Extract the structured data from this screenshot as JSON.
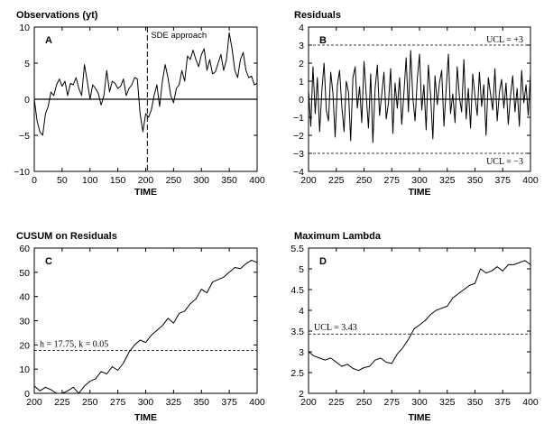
{
  "chart_data": [
    {
      "type": "line",
      "title": "Observations (yt)",
      "panel_label": "A",
      "xlabel": "TIME",
      "ylabel": "",
      "xlim": [
        0,
        400
      ],
      "ylim": [
        -10,
        10
      ],
      "xticks": [
        0,
        50,
        100,
        150,
        200,
        250,
        300,
        350,
        400
      ],
      "yticks": [
        -10,
        -5,
        0,
        5,
        10
      ],
      "reference_lines": [
        {
          "axis": "y",
          "value": 0,
          "style": "solid"
        }
      ],
      "vline": {
        "value": 203,
        "style": "dashed",
        "label": "SDE approach"
      },
      "series": [
        {
          "x": [
            0,
            5,
            10,
            15,
            20,
            25,
            30,
            35,
            40,
            45,
            50,
            55,
            60,
            65,
            70,
            75,
            80,
            85,
            90,
            95,
            100,
            105,
            110,
            115,
            120,
            125,
            130,
            135,
            140,
            145,
            150,
            155,
            160,
            165,
            170,
            175,
            180,
            185,
            190,
            195,
            200,
            205,
            210,
            215,
            220,
            225,
            230,
            235,
            240,
            245,
            250,
            255,
            260,
            265,
            270,
            275,
            280,
            285,
            290,
            295,
            300,
            305,
            310,
            315,
            320,
            325,
            330,
            335,
            340,
            345,
            350,
            355,
            360,
            365,
            370,
            375,
            380,
            385,
            390,
            395,
            400
          ],
          "y": [
            0,
            -3,
            -4.5,
            -5,
            -2,
            -1,
            1,
            0.5,
            2,
            2.8,
            1.8,
            2.5,
            0.5,
            2.2,
            2,
            3,
            1.5,
            0.5,
            4.8,
            2.5,
            0,
            2,
            1.5,
            0.8,
            -0.8,
            0.5,
            4,
            1,
            2.5,
            2.2,
            1.5,
            1.8,
            2.8,
            0.5,
            1.5,
            2,
            3,
            2.8,
            -2,
            -4.5,
            -2,
            -2.5,
            -1.5,
            0.5,
            2,
            -1,
            2.5,
            4.8,
            3,
            0.5,
            -0.5,
            1.5,
            2,
            4,
            2.5,
            6,
            5.5,
            6.8,
            5.5,
            4.5,
            6.2,
            7,
            4,
            5.5,
            3.5,
            3.8,
            5,
            6.2,
            4,
            5.5,
            9.2,
            7,
            4,
            3,
            5.5,
            6.5,
            4,
            3,
            3.2,
            2,
            2.2
          ]
        }
      ]
    },
    {
      "type": "line",
      "title": "Residuals",
      "panel_label": "B",
      "xlabel": "TIME",
      "ylabel": "",
      "xlim": [
        200,
        400
      ],
      "ylim": [
        -4,
        4
      ],
      "xticks": [
        200,
        225,
        250,
        275,
        300,
        325,
        350,
        375,
        400
      ],
      "yticks": [
        -4,
        -3,
        -2,
        -1,
        0,
        1,
        2,
        3,
        4
      ],
      "reference_lines": [
        {
          "axis": "y",
          "value": 0,
          "style": "solid"
        },
        {
          "axis": "y",
          "value": 3,
          "style": "dashed",
          "label": "UCL = +3"
        },
        {
          "axis": "y",
          "value": -3,
          "style": "dashed",
          "label": "UCL = −3"
        }
      ],
      "series": [
        {
          "x": [
            200,
            202,
            204,
            206,
            208,
            210,
            212,
            214,
            216,
            218,
            220,
            222,
            224,
            226,
            228,
            230,
            232,
            234,
            236,
            238,
            240,
            242,
            244,
            246,
            248,
            250,
            252,
            254,
            256,
            258,
            260,
            262,
            264,
            266,
            268,
            270,
            272,
            274,
            276,
            278,
            280,
            282,
            284,
            286,
            288,
            290,
            292,
            294,
            296,
            298,
            300,
            302,
            304,
            306,
            308,
            310,
            312,
            314,
            316,
            318,
            320,
            322,
            324,
            326,
            328,
            330,
            332,
            334,
            336,
            338,
            340,
            342,
            344,
            346,
            348,
            350,
            352,
            354,
            356,
            358,
            360,
            362,
            364,
            366,
            368,
            370,
            372,
            374,
            376,
            378,
            380,
            382,
            384,
            386,
            388,
            390,
            392,
            394,
            396,
            398,
            400
          ],
          "y": [
            0.5,
            -1.5,
            1.8,
            -0.8,
            1.2,
            -1.8,
            0.5,
            2,
            -0.6,
            -1.2,
            1.5,
            0.3,
            -2.1,
            0.8,
            1.6,
            -0.4,
            -1.8,
            1,
            0.4,
            -2.3,
            1.2,
            1.8,
            -0.5,
            0.7,
            -1.3,
            2.1,
            0.2,
            -1.6,
            1.4,
            -2.4,
            0.6,
            1.9,
            -0.9,
            0.3,
            1.5,
            -1.1,
            -0.2,
            1.7,
            -1.9,
            0.9,
            -0.5,
            1.2,
            -1.4,
            0.4,
            2.3,
            -0.7,
            2.7,
            0.1,
            -1.2,
            1.1,
            2.5,
            -0.6,
            0.8,
            -1.7,
            1.9,
            0.2,
            -2.2,
            1.3,
            -0.3,
            0.9,
            1.6,
            -1.5,
            0.5,
            2.5,
            -0.8,
            0.3,
            -1.3,
            1.8,
            0.1,
            -0.7,
            2.2,
            -1.1,
            0.6,
            -1.6,
            1.4,
            0.2,
            -0.9,
            1.5,
            -0.4,
            0.8,
            -2,
            1.2,
            0.3,
            -0.6,
            1.7,
            -1.2,
            0.4,
            1.1,
            -0.5,
            0.9,
            -1.4,
            0.2,
            1.3,
            -0.7,
            0.6,
            -1.5,
            1.6,
            -0.2,
            0.8,
            -0.9,
            1.4
          ]
        }
      ]
    },
    {
      "type": "line",
      "title": "CUSUM on Residuals",
      "panel_label": "C",
      "xlabel": "TIME",
      "ylabel": "",
      "xlim": [
        200,
        400
      ],
      "ylim": [
        0,
        60
      ],
      "xticks": [
        200,
        225,
        250,
        275,
        300,
        325,
        350,
        375,
        400
      ],
      "yticks": [
        0,
        10,
        20,
        30,
        40,
        50,
        60
      ],
      "reference_lines": [
        {
          "axis": "y",
          "value": 17.75,
          "style": "dashed",
          "label": "h = 17.75, k = 0.05"
        }
      ],
      "series": [
        {
          "x": [
            200,
            205,
            210,
            215,
            220,
            225,
            230,
            235,
            240,
            245,
            250,
            255,
            260,
            265,
            270,
            275,
            280,
            285,
            290,
            295,
            300,
            305,
            310,
            315,
            320,
            325,
            330,
            335,
            340,
            345,
            350,
            355,
            360,
            365,
            370,
            375,
            380,
            385,
            390,
            395,
            400
          ],
          "y": [
            3,
            1,
            2.5,
            1.5,
            0,
            0,
            1,
            2.5,
            0,
            3,
            5,
            6,
            9,
            8,
            11,
            9.5,
            12.5,
            17,
            20,
            22,
            21,
            24,
            26,
            28,
            31,
            29,
            33,
            34,
            37,
            39,
            43,
            41.5,
            46,
            47,
            48,
            50,
            52,
            51.5,
            53.5,
            55,
            54
          ]
        }
      ]
    },
    {
      "type": "line",
      "title": "Maximum Lambda",
      "panel_label": "D",
      "xlabel": "TIME",
      "ylabel": "",
      "xlim": [
        200,
        400
      ],
      "ylim": [
        2,
        5.5
      ],
      "xticks": [
        200,
        225,
        250,
        275,
        300,
        325,
        350,
        375,
        400
      ],
      "yticks": [
        2,
        2.5,
        3,
        3.5,
        4,
        4.5,
        5,
        5.5
      ],
      "reference_lines": [
        {
          "axis": "y",
          "value": 3.43,
          "style": "dashed",
          "label": "UCL = 3.43"
        }
      ],
      "series": [
        {
          "x": [
            200,
            205,
            210,
            215,
            220,
            225,
            230,
            235,
            240,
            245,
            250,
            255,
            260,
            265,
            270,
            275,
            280,
            285,
            290,
            295,
            300,
            305,
            310,
            315,
            320,
            325,
            330,
            335,
            340,
            345,
            350,
            355,
            360,
            365,
            370,
            375,
            380,
            385,
            390,
            395,
            400
          ],
          "y": [
            3,
            2.9,
            2.85,
            2.8,
            2.85,
            2.75,
            2.65,
            2.7,
            2.6,
            2.55,
            2.62,
            2.65,
            2.8,
            2.85,
            2.75,
            2.72,
            2.95,
            3.1,
            3.3,
            3.55,
            3.65,
            3.75,
            3.9,
            4,
            4.05,
            4.1,
            4.3,
            4.4,
            4.5,
            4.6,
            4.65,
            5,
            4.9,
            4.95,
            5.05,
            4.95,
            5.1,
            5.1,
            5.15,
            5.2,
            5.1
          ]
        }
      ]
    }
  ]
}
